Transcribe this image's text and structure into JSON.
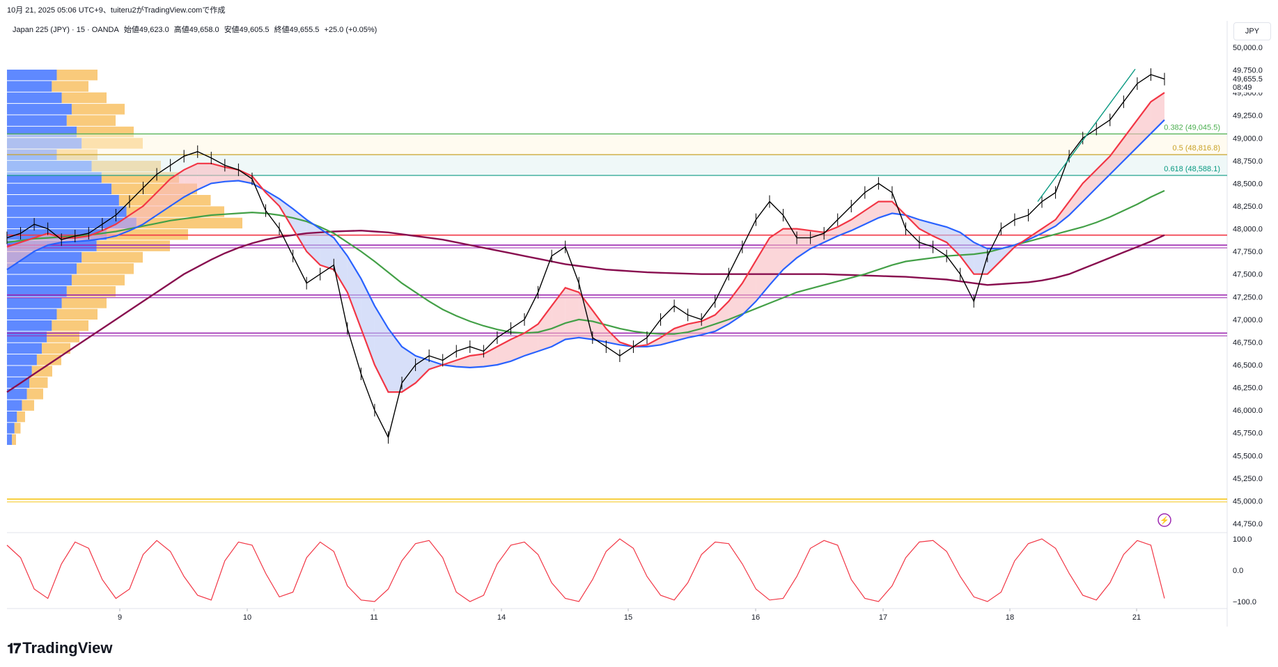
{
  "header": {
    "title": "10月 21, 2025 05:06 UTC+9、tuiteru2がTradingView.comで作成"
  },
  "legend": {
    "symbol": "Japan 225 (JPY) · 15 · OANDA",
    "open": "始値49,623.0",
    "high": "高値49,658.0",
    "low": "安値49,605.5",
    "close": "終値49,655.5",
    "change": "+25.0 (+0.05%)"
  },
  "currency": "JPY",
  "brand": {
    "name": "TradingView",
    "logo": "tradingview-logo-icon"
  },
  "price_tag": {
    "value": "49,655.5",
    "countdown": "08:49"
  },
  "colors": {
    "candle": "#000000",
    "ema_fast": "#f23645",
    "ema_mid": "#2962ff",
    "sma_green": "#43a047",
    "sma_maroon": "#880e4f",
    "fib_green": "#4caf50",
    "fib_gold": "#c9a227",
    "fib_teal": "#089981",
    "vp_blue": "#2962ff",
    "vp_orange": "#f5a623",
    "osc": "#f23645",
    "purple_lines": "#9c27b0",
    "red_line": "#f23645",
    "yellow_line": "#f5c518"
  },
  "chart_data": [
    {
      "type": "line",
      "title": "",
      "ylabel": "",
      "xlabel": "",
      "ylim": [
        44650,
        50250
      ],
      "x_ticks": [
        "9",
        "10",
        "11",
        "14",
        "15",
        "16",
        "17",
        "18",
        "21"
      ],
      "y_ticks": [
        "50,000.0",
        "49,750.0",
        "49,500.0",
        "49,250.0",
        "49,000.0",
        "48,750.0",
        "48,500.0",
        "48,250.0",
        "48,000.0",
        "47,750.0",
        "47,500.0",
        "47,250.0",
        "47,000.0",
        "46,750.0",
        "46,500.0",
        "46,250.0",
        "46,000.0",
        "45,750.0",
        "45,500.0",
        "45,250.0",
        "45,000.0",
        "44,750.0"
      ],
      "series": [
        {
          "values": [
            47900,
            47950,
            48050,
            48000,
            47880,
            47920,
            47950,
            48050,
            48150,
            48300,
            48450,
            48600,
            48700,
            48800,
            48850,
            48780,
            48700,
            48650,
            48550,
            48200,
            48000,
            47700,
            47400,
            47500,
            47600,
            46900,
            46400,
            46000,
            45700,
            46300,
            46500,
            46600,
            46550,
            46650,
            46700,
            46650,
            46800,
            46900,
            47000,
            47300,
            47700,
            47800,
            47400,
            46800,
            46700,
            46600,
            46700,
            46800,
            47000,
            47150,
            47050,
            47000,
            47200,
            47500,
            47800,
            48100,
            48300,
            48150,
            47900,
            47900,
            47950,
            48100,
            48250,
            48400,
            48500,
            48400,
            48000,
            47850,
            47800,
            47700,
            47500,
            47200,
            47700,
            48000,
            48100,
            48150,
            48300,
            48400,
            48800,
            49000,
            49100,
            49200,
            49400,
            49600,
            49700,
            49650
          ]
        },
        {
          "values": [
            47800,
            47850,
            47900,
            47950,
            47900,
            47900,
            47920,
            47980,
            48050,
            48150,
            48250,
            48400,
            48550,
            48650,
            48720,
            48720,
            48680,
            48650,
            48580,
            48400,
            48250,
            48000,
            47750,
            47600,
            47550,
            47300,
            46900,
            46500,
            46200,
            46200,
            46300,
            46450,
            46500,
            46550,
            46600,
            46620,
            46700,
            46780,
            46850,
            46950,
            47150,
            47350,
            47300,
            47100,
            46900,
            46750,
            46700,
            46720,
            46800,
            46900,
            46950,
            46980,
            47050,
            47200,
            47400,
            47650,
            47900,
            48000,
            48000,
            47980,
            47960,
            48020,
            48100,
            48200,
            48300,
            48300,
            48150,
            48000,
            47920,
            47850,
            47700,
            47500,
            47500,
            47650,
            47800,
            47900,
            48000,
            48100,
            48300,
            48500,
            48650,
            48800,
            49000,
            49200,
            49400,
            49500
          ]
        },
        {
          "values": [
            47550,
            47650,
            47750,
            47820,
            47850,
            47860,
            47870,
            47890,
            47920,
            47980,
            48050,
            48150,
            48250,
            48350,
            48430,
            48500,
            48520,
            48530,
            48500,
            48420,
            48330,
            48220,
            48100,
            48000,
            47900,
            47700,
            47450,
            47150,
            46900,
            46700,
            46600,
            46550,
            46500,
            46480,
            46470,
            46480,
            46500,
            46540,
            46600,
            46650,
            46700,
            46780,
            46800,
            46780,
            46750,
            46720,
            46700,
            46700,
            46720,
            46760,
            46800,
            46830,
            46870,
            46950,
            47050,
            47200,
            47380,
            47550,
            47680,
            47780,
            47850,
            47920,
            47980,
            48050,
            48120,
            48170,
            48150,
            48100,
            48060,
            48020,
            47960,
            47850,
            47780,
            47780,
            47820,
            47880,
            47950,
            48030,
            48150,
            48300,
            48450,
            48600,
            48750,
            48900,
            49050,
            49200
          ]
        },
        {
          "values": [
            47850,
            47870,
            47890,
            47900,
            47910,
            47920,
            47930,
            47950,
            47970,
            48000,
            48030,
            48060,
            48090,
            48110,
            48130,
            48150,
            48160,
            48170,
            48180,
            48170,
            48150,
            48120,
            48080,
            48020,
            47950,
            47850,
            47750,
            47640,
            47520,
            47400,
            47300,
            47200,
            47110,
            47040,
            46980,
            46930,
            46890,
            46860,
            46850,
            46860,
            46900,
            46960,
            47000,
            46980,
            46940,
            46900,
            46870,
            46850,
            46840,
            46840,
            46860,
            46900,
            46950,
            47000,
            47060,
            47120,
            47180,
            47240,
            47300,
            47340,
            47380,
            47420,
            47460,
            47500,
            47550,
            47600,
            47640,
            47660,
            47680,
            47700,
            47710,
            47720,
            47740,
            47780,
            47820,
            47860,
            47900,
            47940,
            47980,
            48020,
            48070,
            48130,
            48200,
            48270,
            48350,
            48420
          ]
        },
        {
          "values": [
            46200,
            46300,
            46400,
            46500,
            46600,
            46700,
            46800,
            46900,
            47000,
            47100,
            47200,
            47300,
            47400,
            47500,
            47580,
            47660,
            47730,
            47790,
            47840,
            47880,
            47910,
            47930,
            47950,
            47960,
            47970,
            47975,
            47980,
            47970,
            47960,
            47940,
            47920,
            47900,
            47880,
            47850,
            47820,
            47790,
            47760,
            47730,
            47700,
            47670,
            47640,
            47610,
            47590,
            47570,
            47550,
            47540,
            47530,
            47520,
            47515,
            47510,
            47505,
            47500,
            47500,
            47500,
            47500,
            47500,
            47500,
            47500,
            47500,
            47500,
            47500,
            47495,
            47490,
            47485,
            47480,
            47475,
            47470,
            47460,
            47450,
            47440,
            47420,
            47400,
            47380,
            47390,
            47400,
            47410,
            47430,
            47460,
            47500,
            47560,
            47620,
            47680,
            47740,
            47800,
            47860,
            47930
          ]
        }
      ]
    },
    {
      "type": "line",
      "title": "",
      "ylim": [
        -100,
        100
      ],
      "y_ticks": [
        "100.0",
        "0.0",
        "−100.0"
      ],
      "series": [
        {
          "values": [
            80,
            40,
            -60,
            -90,
            20,
            90,
            70,
            -30,
            -90,
            -60,
            50,
            95,
            60,
            -20,
            -80,
            -95,
            30,
            90,
            80,
            -10,
            -85,
            -70,
            40,
            90,
            60,
            -50,
            -95,
            -100,
            -60,
            30,
            85,
            95,
            40,
            -70,
            -100,
            -80,
            20,
            80,
            90,
            50,
            -40,
            -90,
            -100,
            -30,
            60,
            100,
            70,
            -20,
            -80,
            -95,
            -40,
            50,
            90,
            85,
            20,
            -60,
            -95,
            -90,
            -20,
            70,
            95,
            80,
            -30,
            -90,
            -100,
            -50,
            40,
            90,
            95,
            60,
            -20,
            -85,
            -100,
            -70,
            30,
            85,
            100,
            70,
            -10,
            -80,
            -95,
            -40,
            50,
            95,
            80,
            -90
          ]
        }
      ]
    },
    {
      "type": "bar",
      "title": "",
      "note_orientation": "horizontal volume profile",
      "values": [
        20,
        18,
        22,
        26,
        24,
        28,
        30,
        20,
        34,
        38,
        42,
        45,
        48,
        52,
        40,
        36,
        30,
        28,
        26,
        24,
        22,
        20,
        18,
        16,
        14,
        12,
        10,
        9,
        8,
        6,
        4,
        3,
        2
      ]
    }
  ],
  "fib_levels": [
    {
      "label": "0.382 (49,045.5)",
      "price": 49045.5
    },
    {
      "label": "0.5 (48,816.8)",
      "price": 48816.8
    },
    {
      "label": "0.618 (48,588.1)",
      "price": 48588.1
    }
  ],
  "horizontal_lines": [
    {
      "price": 47930,
      "color": "red"
    },
    {
      "price": 47820,
      "color": "purple"
    },
    {
      "price": 47270,
      "color": "purple"
    },
    {
      "price": 46850,
      "color": "purple"
    },
    {
      "price": 45020,
      "color": "yellow"
    }
  ]
}
